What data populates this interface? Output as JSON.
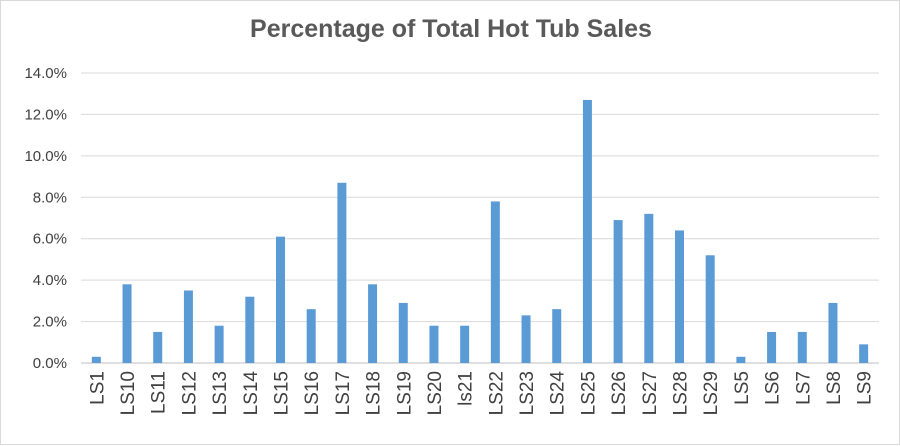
{
  "chart_data": {
    "type": "bar",
    "title": "Percentage of Total Hot Tub Sales",
    "xlabel": "",
    "ylabel": "",
    "ylim": [
      0,
      14
    ],
    "yticks": [
      0,
      2,
      4,
      6,
      8,
      10,
      12,
      14
    ],
    "ytick_labels": [
      "0.0%",
      "2.0%",
      "4.0%",
      "6.0%",
      "8.0%",
      "10.0%",
      "12.0%",
      "14.0%"
    ],
    "grid": true,
    "legend": "none",
    "bar_color": "#5b9bd5",
    "categories": [
      "LS1",
      "LS10",
      "LS11",
      "LS12",
      "LS13",
      "LS14",
      "LS15",
      "LS16",
      "LS17",
      "LS18",
      "LS19",
      "LS20",
      "ls21",
      "LS22",
      "LS23",
      "LS24",
      "LS25",
      "LS26",
      "LS27",
      "LS28",
      "LS29",
      "LS5",
      "LS6",
      "LS7",
      "LS8",
      "LS9"
    ],
    "values": [
      0.3,
      3.8,
      1.5,
      3.5,
      1.8,
      3.2,
      6.1,
      2.6,
      8.7,
      3.8,
      2.9,
      1.8,
      1.8,
      7.8,
      2.3,
      2.6,
      12.7,
      6.9,
      7.2,
      6.4,
      5.2,
      0.3,
      1.5,
      1.5,
      2.9,
      0.9
    ]
  }
}
